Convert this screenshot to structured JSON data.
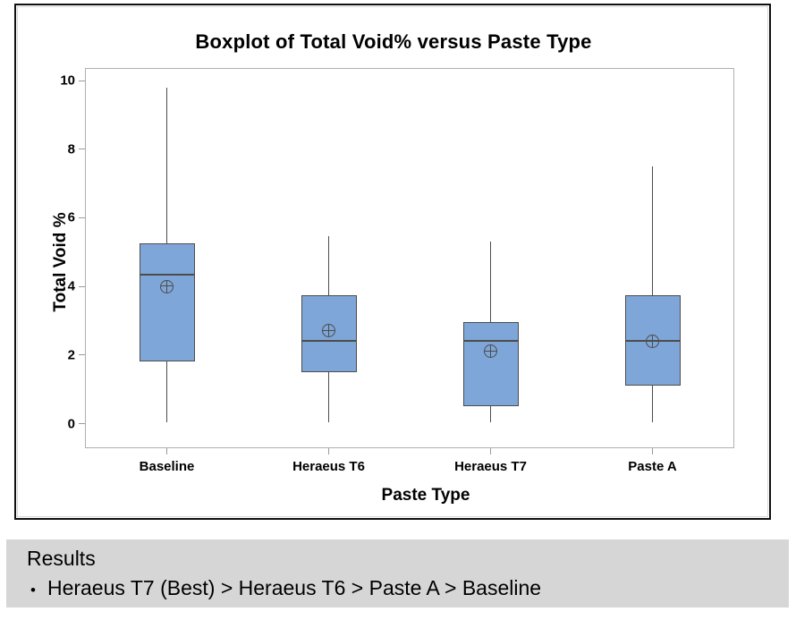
{
  "chart_data": {
    "type": "boxplot",
    "title": "Boxplot of Total Void% versus Paste Type",
    "xlabel": "Paste Type",
    "ylabel": "Total Void %",
    "ylim": [
      0,
      10
    ],
    "yticks": [
      0,
      2,
      4,
      6,
      8,
      10
    ],
    "grid": false,
    "legend": "none",
    "categories": [
      "Baseline",
      "Heraeus T6",
      "Heraeus T7",
      "Paste A"
    ],
    "series": [
      {
        "category": "Baseline",
        "whisker_low": 0.05,
        "q1": 1.8,
        "median": 4.35,
        "q3": 5.25,
        "whisker_high": 9.8,
        "mean": 4.0
      },
      {
        "category": "Heraeus T6",
        "whisker_low": 0.05,
        "q1": 1.5,
        "median": 2.4,
        "q3": 3.75,
        "whisker_high": 5.45,
        "mean": 2.7
      },
      {
        "category": "Heraeus T7",
        "whisker_low": 0.05,
        "q1": 0.5,
        "median": 2.4,
        "q3": 2.95,
        "whisker_high": 5.3,
        "mean": 2.1
      },
      {
        "category": "Paste A",
        "whisker_low": 0.05,
        "q1": 1.1,
        "median": 2.4,
        "q3": 3.75,
        "whisker_high": 7.5,
        "mean": 2.4
      }
    ],
    "colors": {
      "box_fill": "#7FA6D8",
      "box_line": "#4C4C4C",
      "plot_border": "#B0B0B0",
      "frame_border": "#101010"
    }
  },
  "results": {
    "heading": "Results",
    "bullet_marker": "•",
    "items": [
      "Heraeus T7 (Best) > Heraeus T6 > Paste A > Baseline"
    ],
    "background": "#D6D6D6"
  }
}
